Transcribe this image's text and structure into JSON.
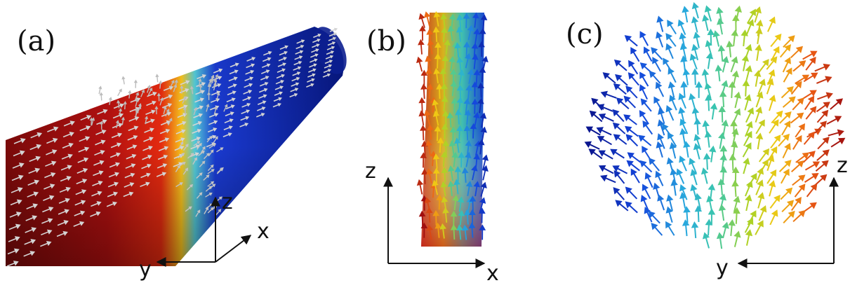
{
  "panels": [
    {
      "label": "(a)",
      "axes": {
        "z": "z",
        "x": "x",
        "y": "y"
      }
    },
    {
      "label": "(b)",
      "axes": {
        "z": "z",
        "x": "x"
      }
    },
    {
      "label": "(c)",
      "axes": {
        "z": "z",
        "y": "y"
      }
    }
  ],
  "colors": {
    "background": "#ffffff",
    "arrow_light": "#c8c8c8",
    "tube_red": "#a01010",
    "tube_blue": "#0a1f96",
    "axis": "#111111"
  }
}
